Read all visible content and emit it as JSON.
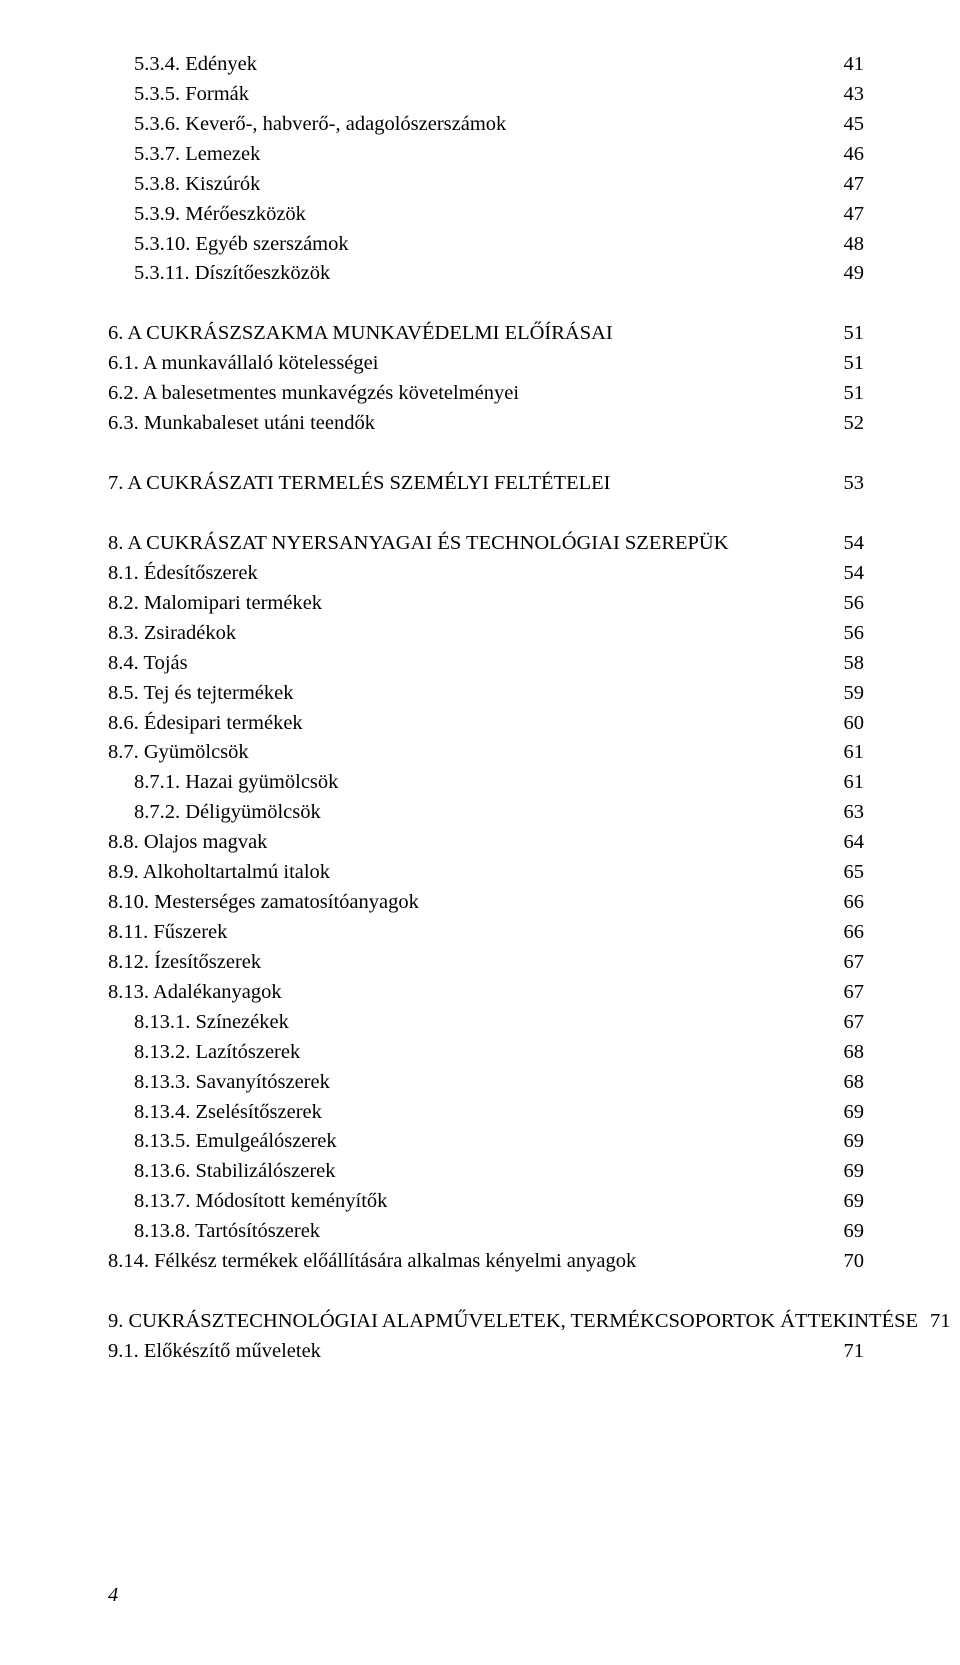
{
  "text_color": "#000000",
  "background_color": "#ffffff",
  "font_family": "Times New Roman",
  "base_font_size_pt": 15,
  "page_number": "4",
  "entries": [
    {
      "indent": 1,
      "label": "5.3.4. Edények",
      "page": "41"
    },
    {
      "indent": 1,
      "label": "5.3.5. Formák",
      "page": "43"
    },
    {
      "indent": 1,
      "label": "5.3.6. Keverő-, habverő-, adagolószerszámok",
      "page": "45"
    },
    {
      "indent": 1,
      "label": "5.3.7. Lemezek",
      "page": "46"
    },
    {
      "indent": 1,
      "label": "5.3.8. Kiszúrók",
      "page": "47"
    },
    {
      "indent": 1,
      "label": "5.3.9. Mérőeszközök",
      "page": "47"
    },
    {
      "indent": 1,
      "label": "5.3.10. Egyéb szerszámok",
      "page": "48"
    },
    {
      "indent": 1,
      "label": "5.3.11. Díszítőeszközök",
      "page": "49"
    },
    {
      "gap": true
    },
    {
      "indent": 0,
      "label": "6. A CUKRÁSZSZAKMA MUNKAVÉDELMI ELŐÍRÁSAI",
      "page": "51"
    },
    {
      "indent": 0,
      "label": "6.1. A munkavállaló kötelességei",
      "page": "51"
    },
    {
      "indent": 0,
      "label": "6.2. A balesetmentes munkavégzés követelményei",
      "page": "51"
    },
    {
      "indent": 0,
      "label": "6.3. Munkabaleset utáni teendők",
      "page": "52"
    },
    {
      "gap": true
    },
    {
      "indent": 0,
      "label": "7. A CUKRÁSZATI TERMELÉS SZEMÉLYI FELTÉTELEI",
      "page": "53"
    },
    {
      "gap": true
    },
    {
      "indent": 0,
      "label": "8. A CUKRÁSZAT NYERSANYAGAI ÉS TECHNOLÓGIAI SZEREPÜK",
      "page": "54"
    },
    {
      "indent": 0,
      "label": "8.1. Édesítőszerek",
      "page": "54"
    },
    {
      "indent": 0,
      "label": "8.2. Malomipari termékek",
      "page": "56"
    },
    {
      "indent": 0,
      "label": "8.3. Zsiradékok",
      "page": "56"
    },
    {
      "indent": 0,
      "label": "8.4. Tojás",
      "page": "58"
    },
    {
      "indent": 0,
      "label": "8.5. Tej és tejtermékek",
      "page": "59"
    },
    {
      "indent": 0,
      "label": "8.6. Édesipari termékek",
      "page": "60"
    },
    {
      "indent": 0,
      "label": "8.7. Gyümölcsök",
      "page": "61"
    },
    {
      "indent": 1,
      "label": "8.7.1. Hazai gyümölcsök",
      "page": "61"
    },
    {
      "indent": 1,
      "label": "8.7.2. Déligyümölcsök",
      "page": "63"
    },
    {
      "indent": 0,
      "label": "8.8. Olajos magvak",
      "page": "64"
    },
    {
      "indent": 0,
      "label": "8.9. Alkoholtartalmú italok",
      "page": "65"
    },
    {
      "indent": 0,
      "label": "8.10. Mesterséges zamatosítóanyagok",
      "page": "66"
    },
    {
      "indent": 0,
      "label": "8.11. Fűszerek",
      "page": "66"
    },
    {
      "indent": 0,
      "label": "8.12. Ízesítőszerek",
      "page": "67"
    },
    {
      "indent": 0,
      "label": "8.13. Adalékanyagok",
      "page": "67"
    },
    {
      "indent": 1,
      "label": "8.13.1. Színezékek",
      "page": "67"
    },
    {
      "indent": 1,
      "label": "8.13.2. Lazítószerek",
      "page": "68"
    },
    {
      "indent": 1,
      "label": "8.13.3. Savanyítószerek",
      "page": "68"
    },
    {
      "indent": 1,
      "label": "8.13.4. Zselésítőszerek",
      "page": "69"
    },
    {
      "indent": 1,
      "label": "8.13.5. Emulgeálószerek",
      "page": "69"
    },
    {
      "indent": 1,
      "label": "8.13.6. Stabilizálószerek",
      "page": "69"
    },
    {
      "indent": 1,
      "label": "8.13.7. Módosított keményítők",
      "page": "69"
    },
    {
      "indent": 1,
      "label": "8.13.8. Tartósítószerek",
      "page": "69"
    },
    {
      "indent": 0,
      "label": "8.14. Félkész termékek előállítására alkalmas kényelmi anyagok",
      "page": "70"
    },
    {
      "gap": true
    },
    {
      "indent": 0,
      "label": "9. CUKRÁSZTECHNOLÓGIAI ALAPMŰVELETEK, TERMÉKCSOPORTOK ÁTTEKINTÉSE",
      "page": "71"
    },
    {
      "indent": 0,
      "label": "9.1. Előkészítő műveletek",
      "page": "71"
    }
  ]
}
